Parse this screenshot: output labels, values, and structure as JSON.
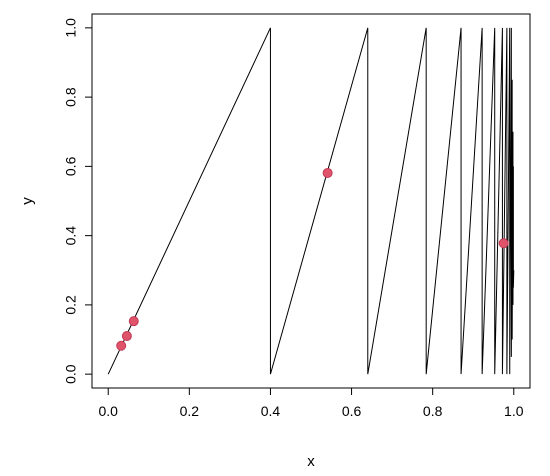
{
  "chart_data": {
    "type": "line",
    "xlabel": "x",
    "ylabel": "y",
    "xlim": [
      -0.04,
      1.04
    ],
    "ylim": [
      -0.04,
      1.04
    ],
    "x_ticks": [
      0.0,
      0.2,
      0.4,
      0.6,
      0.8,
      1.0
    ],
    "x_tick_labels": [
      "0.0",
      "0.2",
      "0.4",
      "0.6",
      "0.8",
      "1.0"
    ],
    "y_ticks": [
      0.0,
      0.2,
      0.4,
      0.6,
      0.8,
      1.0
    ],
    "y_tick_labels": [
      "0.0",
      "0.2",
      "0.4",
      "0.6",
      "0.8",
      "1.0"
    ],
    "grid": false,
    "legend": "none",
    "series": [
      {
        "kind": "line",
        "color": "#000000",
        "x": [
          0.0,
          0.4,
          0.4,
          0.64,
          0.64,
          0.784,
          0.784,
          0.87,
          0.87,
          0.922,
          0.922,
          0.953,
          0.953,
          0.972,
          0.972,
          0.983,
          0.983,
          0.99,
          0.99,
          0.994,
          0.994,
          0.996,
          0.996,
          0.998,
          0.998,
          0.999,
          0.999,
          1.0
        ],
        "y": [
          0.0,
          1.0,
          0.0,
          1.0,
          0.0,
          1.0,
          0.0,
          1.0,
          0.0,
          1.0,
          0.0,
          1.0,
          0.0,
          1.0,
          0.0,
          1.0,
          0.0,
          1.0,
          0.0,
          1.0,
          0.05,
          0.85,
          0.1,
          0.7,
          0.2,
          0.6,
          0.25,
          0.3
        ]
      },
      {
        "kind": "points",
        "color": "#DF536B",
        "x": [
          0.032,
          0.046,
          0.063,
          0.541,
          0.975
        ],
        "y": [
          0.082,
          0.11,
          0.153,
          0.581,
          0.378
        ]
      }
    ]
  }
}
